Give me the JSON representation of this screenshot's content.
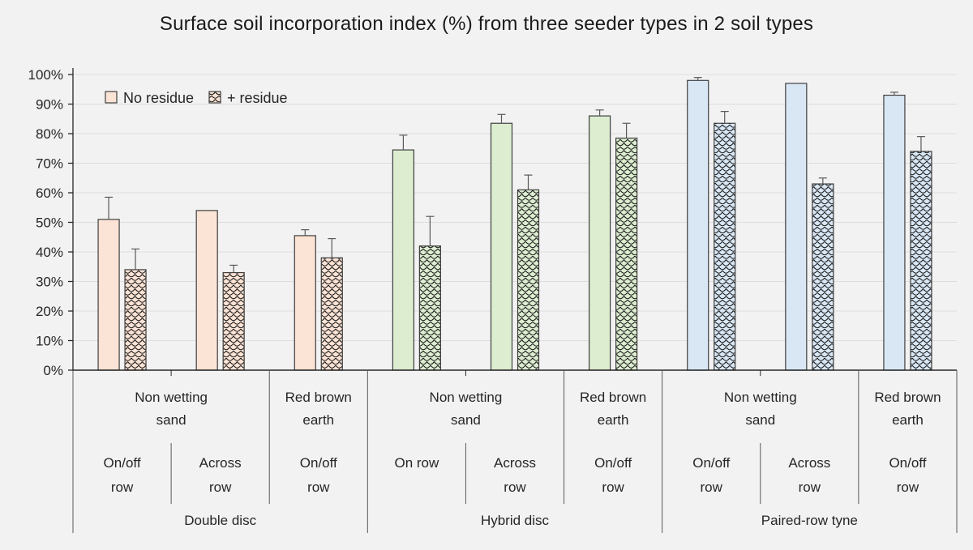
{
  "page": {
    "background": "#f2f2f2"
  },
  "chart_data": {
    "type": "bar",
    "title": "Surface soil incorporation index (%) from three seeder types in 2 soil types",
    "xlabel": "",
    "ylabel": "",
    "ylim": [
      0,
      100
    ],
    "ytick_step": 10,
    "ytick_suffix": "%",
    "grid": true,
    "error_bars": "upper",
    "legend": {
      "position": "top-left",
      "entries": [
        "No residue",
        "+ residue"
      ]
    },
    "series_names": [
      "No residue",
      "+ residue"
    ],
    "colors": {
      "background": "#f2f2f2",
      "grid": "#dddddd",
      "axis": "#262626",
      "text": "#262626",
      "separator": "#595959",
      "error": "#595959",
      "bar_outline": "#3f3f3f",
      "pattern_stroke": "#1f1f1f"
    },
    "groups": [
      {
        "seeder": "Double disc",
        "fill": "#fbe3d5",
        "soils": [
          {
            "soil": "Non wetting sand",
            "rows": [
              {
                "row": "On/off row",
                "no_residue": 51,
                "no_residue_err": 7.5,
                "plus_residue": 34,
                "plus_residue_err": 7
              },
              {
                "row": "Across row",
                "no_residue": 54,
                "no_residue_err": 0,
                "plus_residue": 33,
                "plus_residue_err": 2.5
              }
            ]
          },
          {
            "soil": "Red brown earth",
            "rows": [
              {
                "row": "On/off row",
                "no_residue": 45.5,
                "no_residue_err": 2,
                "plus_residue": 38,
                "plus_residue_err": 6.5
              }
            ]
          }
        ]
      },
      {
        "seeder": "Hybrid disc",
        "fill": "#dcedd0",
        "soils": [
          {
            "soil": "Non wetting sand",
            "rows": [
              {
                "row": "On row",
                "no_residue": 74.5,
                "no_residue_err": 5,
                "plus_residue": 42,
                "plus_residue_err": 10
              },
              {
                "row": "Across row",
                "no_residue": 83.5,
                "no_residue_err": 3,
                "plus_residue": 61,
                "plus_residue_err": 5
              }
            ]
          },
          {
            "soil": "Red brown earth",
            "rows": [
              {
                "row": "On/off row",
                "no_residue": 86,
                "no_residue_err": 2,
                "plus_residue": 78.5,
                "plus_residue_err": 5
              }
            ]
          }
        ]
      },
      {
        "seeder": "Paired-row tyne",
        "fill": "#d9e7f5",
        "soils": [
          {
            "soil": "Non wetting sand",
            "rows": [
              {
                "row": "On/off row",
                "no_residue": 98,
                "no_residue_err": 1,
                "plus_residue": 83.5,
                "plus_residue_err": 4
              },
              {
                "row": "Across row",
                "no_residue": 97,
                "no_residue_err": 0,
                "plus_residue": 63,
                "plus_residue_err": 2
              }
            ]
          },
          {
            "soil": "Red brown earth",
            "rows": [
              {
                "row": "On/off row",
                "no_residue": 93,
                "no_residue_err": 1,
                "plus_residue": 74,
                "plus_residue_err": 5
              }
            ]
          }
        ]
      }
    ]
  }
}
